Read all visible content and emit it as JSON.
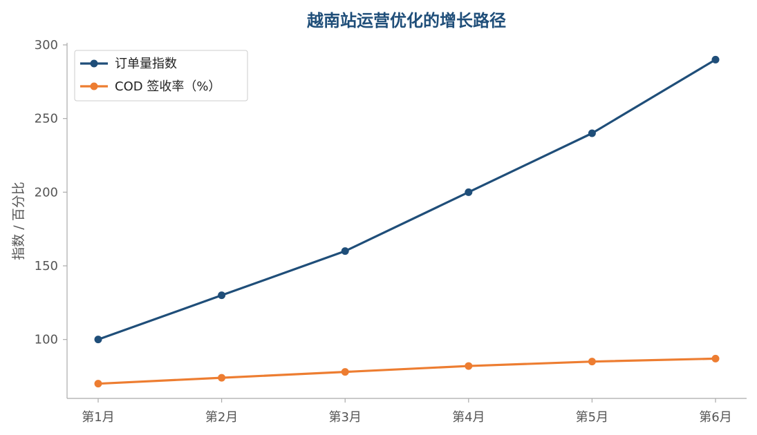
{
  "colors": {
    "title": "#1f4e79",
    "axis": "#aaaaaa",
    "tick_text": "#555555",
    "legend_border": "#cccccc"
  },
  "chart_data": {
    "type": "line",
    "title": "越南站运营优化的增长路径",
    "xlabel": "",
    "ylabel": "指数 / 百分比",
    "categories": [
      "第1月",
      "第2月",
      "第3月",
      "第4月",
      "第5月",
      "第6月"
    ],
    "yticks": [
      100,
      150,
      200,
      250,
      300
    ],
    "ylim": [
      60,
      300
    ],
    "grid": false,
    "legend_position": "top-left",
    "series": [
      {
        "name": "订单量指数",
        "color": "#1f4e79",
        "values": [
          100,
          130,
          160,
          200,
          240,
          290
        ]
      },
      {
        "name": "COD 签收率（%）",
        "color": "#ed7d31",
        "values": [
          70,
          74,
          78,
          82,
          85,
          87
        ]
      }
    ]
  }
}
